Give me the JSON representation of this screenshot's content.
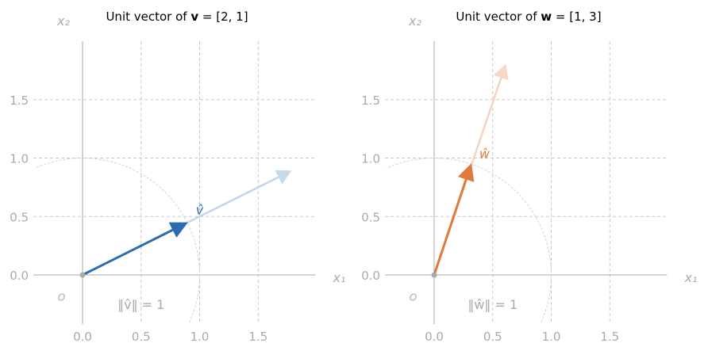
{
  "colors": {
    "blue": "#2b6cb0",
    "blue_faded": "#c3d5e8",
    "orange": "#e07a3a",
    "orange_faded": "#f5d4bf",
    "axis": "#a8a8a8",
    "grid": "#c8c8c8"
  },
  "panels": [
    {
      "title_prefix": "Unit vector of ",
      "title_vec": "v",
      "title_suffix": " = [2, 1]",
      "color": "blue",
      "faded_color": "blue_faded",
      "vector": [
        2,
        1
      ],
      "faded_tip": [
        1.78,
        0.89
      ],
      "unit": [
        0.894,
        0.447
      ],
      "hat_label": "v̂",
      "hat_pos": [
        1.0,
        0.52
      ],
      "norm_label": "‖v̂‖ = 1",
      "origin_label": "O",
      "x_label": "x₁",
      "y_label": "x₂"
    },
    {
      "title_prefix": "Unit vector of ",
      "title_vec": "w",
      "title_suffix": " = [1, 3]",
      "color": "orange",
      "faded_color": "orange_faded",
      "vector": [
        1,
        3
      ],
      "faded_tip": [
        0.61,
        1.8
      ],
      "unit": [
        0.316,
        0.949
      ],
      "hat_label": "ŵ",
      "hat_pos": [
        0.43,
        1.0
      ],
      "norm_label": "‖ŵ‖ = 1",
      "origin_label": "O",
      "x_label": "x₁",
      "y_label": "x₂"
    }
  ],
  "axes": {
    "xlim": [
      -0.42,
      1.99
    ],
    "ylim": [
      -0.42,
      2.0
    ],
    "xticks": [
      "0.0",
      "0.5",
      "1.0",
      "1.5"
    ],
    "yticks": [
      "0.0",
      "0.5",
      "1.0",
      "1.5"
    ],
    "tick_values": [
      0,
      0.5,
      1.0,
      1.5
    ],
    "grid": true,
    "unit_circle_radius": 1
  }
}
